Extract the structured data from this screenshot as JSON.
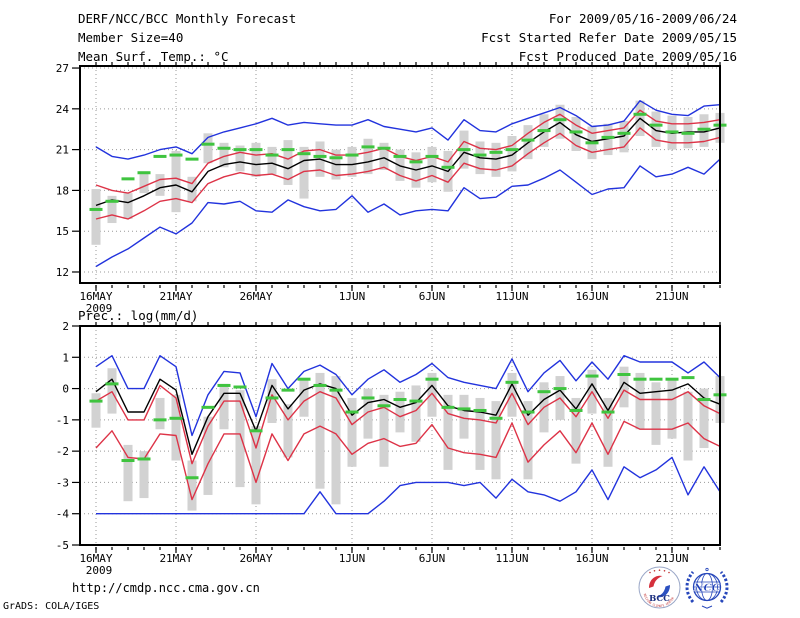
{
  "header": {
    "title": "DERF/NCC/BCC Monthly Forecast",
    "member_size": "Member Size=40",
    "for_range": "For 2009/05/16-2009/06/24",
    "refer_date": "Fcst Started Refer Date 2009/05/15",
    "produced_date": "Fcst Produced Date 2009/05/16"
  },
  "footer": {
    "url": "http://cmdp.ncc.cma.gov.cn",
    "credit": "GrADS: COLA/IGES",
    "logo_bcc": "BCC",
    "logo_ncc": "NCC"
  },
  "colors": {
    "minmax_line": "#2233dd",
    "sd_line": "#dd3347",
    "mean_line": "#000000",
    "obs_dash": "#3fc43f",
    "spread_bar": "#d2d2d2",
    "grid": "#999999"
  },
  "chart_data": [
    {
      "type": "line",
      "title": "Mean Surf. Temp.: °C",
      "ylim": [
        11.19,
        27.15
      ],
      "yticks": [
        12,
        15,
        18,
        21,
        24,
        27
      ],
      "x_range_days": [
        -1,
        39
      ],
      "x_ticks": [
        {
          "day": 0,
          "label": "16MAY",
          "sub": "2009"
        },
        {
          "day": 5,
          "label": "21MAY"
        },
        {
          "day": 10,
          "label": "26MAY"
        },
        {
          "day": 16,
          "label": "1JUN"
        },
        {
          "day": 21,
          "label": "6JUN"
        },
        {
          "day": 26,
          "label": "11JUN"
        },
        {
          "day": 31,
          "label": "16JUN"
        },
        {
          "day": 36,
          "label": "21JUN"
        }
      ],
      "series": [
        {
          "name": "ens-max",
          "color": "#2233dd",
          "values": [
            21.2,
            20.5,
            20.3,
            20.6,
            21.0,
            21.2,
            20.7,
            21.9,
            22.3,
            22.6,
            22.9,
            23.3,
            22.8,
            23.0,
            22.9,
            22.8,
            22.8,
            23.2,
            22.7,
            22.5,
            22.3,
            22.6,
            21.7,
            23.2,
            22.4,
            22.3,
            22.9,
            23.3,
            23.7,
            24.1,
            23.5,
            22.7,
            22.8,
            23.1,
            24.6,
            23.9,
            23.6,
            23.5,
            24.2,
            24.3
          ]
        },
        {
          "name": "plus-sd",
          "color": "#dd3347",
          "values": [
            18.4,
            18.0,
            17.8,
            18.3,
            18.8,
            18.9,
            18.5,
            20.0,
            20.5,
            20.8,
            20.6,
            20.7,
            20.3,
            20.9,
            21.0,
            20.6,
            20.6,
            20.8,
            21.1,
            20.5,
            20.2,
            20.5,
            20.1,
            21.6,
            21.1,
            21.0,
            21.3,
            22.2,
            23.0,
            23.6,
            22.8,
            22.2,
            22.4,
            22.6,
            23.9,
            23.1,
            22.9,
            22.9,
            23.0,
            23.2
          ]
        },
        {
          "name": "minus-sd",
          "color": "#dd3347",
          "values": [
            15.9,
            16.2,
            15.9,
            16.5,
            17.2,
            17.4,
            17.1,
            18.5,
            19.0,
            19.3,
            19.1,
            19.2,
            18.8,
            19.4,
            19.5,
            19.1,
            19.2,
            19.4,
            19.7,
            19.1,
            18.7,
            19.1,
            18.6,
            20.0,
            19.6,
            19.5,
            19.8,
            20.7,
            21.5,
            22.2,
            21.3,
            20.8,
            21.0,
            21.2,
            22.6,
            21.7,
            21.5,
            21.5,
            21.6,
            21.9
          ]
        },
        {
          "name": "ens-min",
          "color": "#2233dd",
          "values": [
            12.4,
            13.1,
            13.7,
            14.5,
            15.3,
            14.8,
            15.6,
            17.1,
            17.0,
            17.2,
            16.5,
            16.4,
            17.3,
            16.8,
            16.5,
            16.6,
            17.6,
            16.4,
            17.0,
            16.2,
            16.5,
            16.6,
            16.5,
            18.2,
            17.4,
            17.5,
            18.3,
            18.4,
            18.9,
            19.5,
            18.6,
            17.7,
            18.1,
            18.2,
            19.8,
            19.0,
            19.2,
            19.7,
            19.2,
            20.3
          ]
        },
        {
          "name": "ens-mean",
          "color": "#000000",
          "values": [
            16.9,
            17.3,
            17.1,
            17.6,
            18.2,
            18.4,
            17.9,
            19.4,
            19.9,
            20.1,
            19.9,
            20.0,
            19.6,
            20.2,
            20.3,
            19.9,
            19.9,
            20.1,
            20.4,
            19.8,
            19.5,
            19.8,
            19.4,
            20.8,
            20.4,
            20.3,
            20.6,
            21.5,
            22.3,
            23.0,
            22.1,
            21.6,
            21.8,
            22.0,
            23.3,
            22.4,
            22.2,
            22.3,
            22.3,
            22.6
          ]
        }
      ],
      "obs": {
        "name": "observation",
        "color": "#3fc43f",
        "values": [
          16.6,
          17.2,
          18.85,
          19.3,
          20.5,
          20.6,
          20.3,
          21.4,
          21.1,
          21.0,
          21.0,
          20.6,
          21.0,
          20.7,
          20.5,
          20.4,
          20.6,
          21.2,
          21.1,
          20.5,
          20.1,
          20.5,
          19.7,
          21.0,
          20.6,
          20.8,
          21.0,
          21.7,
          22.4,
          23.2,
          22.3,
          21.5,
          21.9,
          22.2,
          23.6,
          22.8,
          22.3,
          22.2,
          22.5,
          22.8
        ]
      },
      "bars": {
        "name": "ensemble-spread",
        "color": "#d2d2d2",
        "ranges": [
          [
            14.0,
            18.1
          ],
          [
            15.6,
            17.6
          ],
          [
            15.9,
            17.8
          ],
          [
            17.8,
            19.4
          ],
          [
            17.6,
            19.2
          ],
          [
            16.4,
            20.9
          ],
          [
            17.2,
            19.0
          ],
          [
            20.0,
            22.2
          ],
          [
            19.7,
            21.5
          ],
          [
            19.4,
            21.3
          ],
          [
            19.0,
            21.5
          ],
          [
            19.2,
            21.2
          ],
          [
            18.4,
            21.7
          ],
          [
            17.4,
            21.2
          ],
          [
            19.0,
            21.6
          ],
          [
            18.8,
            21.0
          ],
          [
            19.0,
            21.2
          ],
          [
            19.2,
            21.8
          ],
          [
            19.5,
            21.5
          ],
          [
            18.7,
            21.0
          ],
          [
            18.2,
            20.8
          ],
          [
            18.6,
            21.2
          ],
          [
            17.9,
            20.9
          ],
          [
            19.6,
            22.4
          ],
          [
            19.2,
            21.6
          ],
          [
            19.0,
            21.5
          ],
          [
            19.4,
            22.0
          ],
          [
            20.3,
            22.8
          ],
          [
            21.2,
            23.6
          ],
          [
            21.8,
            24.3
          ],
          [
            20.9,
            23.4
          ],
          [
            20.3,
            22.7
          ],
          [
            20.6,
            22.9
          ],
          [
            20.8,
            23.1
          ],
          [
            22.0,
            24.6
          ],
          [
            21.2,
            23.8
          ],
          [
            21.0,
            23.5
          ],
          [
            21.1,
            23.4
          ],
          [
            21.2,
            23.6
          ],
          [
            21.5,
            23.7
          ]
        ]
      }
    },
    {
      "type": "line",
      "title": "Prec.: log(mm/d)",
      "ylim": [
        -5,
        2
      ],
      "yticks": [
        -5,
        -4,
        -3,
        -2,
        -1,
        0,
        1,
        2
      ],
      "x_range_days": [
        -1,
        39
      ],
      "x_ticks": [
        {
          "day": 0,
          "label": "16MAY",
          "sub": "2009"
        },
        {
          "day": 5,
          "label": "21MAY"
        },
        {
          "day": 10,
          "label": "26MAY"
        },
        {
          "day": 16,
          "label": "1JUN"
        },
        {
          "day": 21,
          "label": "6JUN"
        },
        {
          "day": 26,
          "label": "11JUN"
        },
        {
          "day": 31,
          "label": "16JUN"
        },
        {
          "day": 36,
          "label": "21JUN"
        }
      ],
      "series": [
        {
          "name": "ens-max",
          "color": "#2233dd",
          "values": [
            0.7,
            1.05,
            0.0,
            0.0,
            1.05,
            0.7,
            -1.5,
            -0.2,
            0.55,
            0.5,
            -0.9,
            0.8,
            0.0,
            0.55,
            0.75,
            0.45,
            -0.2,
            0.3,
            0.6,
            0.2,
            0.45,
            0.8,
            0.35,
            0.2,
            0.1,
            0.0,
            0.95,
            -0.1,
            0.5,
            0.9,
            0.25,
            0.85,
            0.3,
            1.05,
            0.85,
            0.85,
            0.85,
            0.5,
            0.85,
            0.35
          ]
        },
        {
          "name": "plus-sd",
          "color": "#dd3347",
          "values": [
            -0.4,
            -0.1,
            -1.0,
            -1.0,
            0.1,
            -0.3,
            -2.4,
            -1.2,
            -0.4,
            -0.4,
            -1.9,
            -0.2,
            -1.0,
            -0.4,
            -0.1,
            -0.3,
            -1.15,
            -0.75,
            -0.6,
            -0.9,
            -0.7,
            -0.15,
            -0.8,
            -0.95,
            -1.0,
            -1.1,
            -0.15,
            -1.15,
            -0.6,
            -0.3,
            -0.9,
            -0.1,
            -0.95,
            -0.05,
            -0.35,
            -0.35,
            -0.35,
            -0.1,
            -0.55,
            -0.8
          ]
        },
        {
          "name": "minus-sd",
          "color": "#dd3347",
          "values": [
            -1.9,
            -1.35,
            -2.2,
            -2.25,
            -1.45,
            -1.5,
            -3.55,
            -2.4,
            -1.45,
            -1.45,
            -3.0,
            -1.45,
            -2.3,
            -1.45,
            -1.2,
            -1.45,
            -2.1,
            -1.75,
            -1.6,
            -1.85,
            -1.75,
            -1.15,
            -1.9,
            -2.05,
            -2.1,
            -2.2,
            -1.1,
            -2.35,
            -1.8,
            -1.35,
            -2.05,
            -1.1,
            -2.1,
            -1.05,
            -1.3,
            -1.3,
            -1.3,
            -1.1,
            -1.6,
            -1.85
          ]
        },
        {
          "name": "ens-min",
          "color": "#2233dd",
          "values": [
            -4,
            -4,
            -4,
            -4,
            -4,
            -4,
            -4,
            -4,
            -4,
            -4,
            -4,
            -4,
            -4,
            -4,
            -3.3,
            -4,
            -4,
            -4,
            -3.6,
            -3.1,
            -3.0,
            -3.0,
            -3.0,
            -3.1,
            -3.0,
            -3.5,
            -2.9,
            -3.3,
            -3.4,
            -3.6,
            -3.3,
            -2.6,
            -3.55,
            -2.5,
            -2.85,
            -2.6,
            -2.2,
            -3.4,
            -2.5,
            -3.3
          ]
        },
        {
          "name": "ens-mean",
          "color": "#000000",
          "values": [
            -0.1,
            0.3,
            -0.75,
            -0.75,
            0.3,
            -0.05,
            -2.1,
            -0.9,
            -0.15,
            -0.15,
            -1.35,
            0.1,
            -0.65,
            -0.05,
            0.15,
            0.0,
            -0.85,
            -0.45,
            -0.35,
            -0.6,
            -0.45,
            0.1,
            -0.55,
            -0.7,
            -0.75,
            -0.85,
            0.15,
            -0.85,
            -0.35,
            -0.05,
            -0.65,
            0.15,
            -0.7,
            0.2,
            -0.15,
            -0.1,
            -0.05,
            0.15,
            -0.3,
            -0.5
          ]
        }
      ],
      "obs": {
        "name": "observation",
        "color": "#3fc43f",
        "values": [
          -0.4,
          0.15,
          -2.3,
          -2.25,
          -1.0,
          -0.95,
          -2.85,
          -0.6,
          0.1,
          0.05,
          -1.35,
          -0.3,
          -0.05,
          0.3,
          0.1,
          -0.05,
          -0.75,
          -0.3,
          -0.55,
          -0.35,
          -0.4,
          0.3,
          -0.6,
          -0.65,
          -0.7,
          -0.95,
          0.2,
          -0.75,
          -0.1,
          0.0,
          -0.7,
          0.4,
          -0.75,
          0.45,
          0.3,
          0.3,
          0.3,
          0.35,
          -0.35,
          -0.2
        ]
      },
      "bars": {
        "name": "ensemble-spread",
        "color": "#d2d2d2",
        "ranges": [
          [
            -1.25,
            -0.15
          ],
          [
            -0.8,
            0.65
          ],
          [
            -3.6,
            -1.8
          ],
          [
            -3.5,
            -2.0
          ],
          [
            -1.3,
            -0.3
          ],
          [
            -2.3,
            -0.2
          ],
          [
            -3.9,
            -2.3
          ],
          [
            -3.4,
            -0.9
          ],
          [
            -1.3,
            0.15
          ],
          [
            -3.15,
            -0.05
          ],
          [
            -3.7,
            -1.2
          ],
          [
            -1.1,
            0.3
          ],
          [
            -2.2,
            -0.5
          ],
          [
            -0.9,
            0.3
          ],
          [
            -3.2,
            0.5
          ],
          [
            -3.7,
            0.4
          ],
          [
            -2.5,
            -0.3
          ],
          [
            -1.6,
            0.0
          ],
          [
            -2.5,
            -0.2
          ],
          [
            -1.4,
            -0.1
          ],
          [
            -1.7,
            0.1
          ],
          [
            -0.9,
            0.5
          ],
          [
            -2.6,
            -0.2
          ],
          [
            -1.6,
            -0.2
          ],
          [
            -2.6,
            -0.3
          ],
          [
            -2.9,
            -0.4
          ],
          [
            -0.9,
            0.5
          ],
          [
            -2.9,
            -0.4
          ],
          [
            -1.4,
            0.2
          ],
          [
            -1.0,
            0.4
          ],
          [
            -2.4,
            -0.3
          ],
          [
            -0.8,
            0.6
          ],
          [
            -2.5,
            -0.3
          ],
          [
            -0.6,
            0.7
          ],
          [
            -1.3,
            0.5
          ],
          [
            -1.8,
            0.2
          ],
          [
            -1.6,
            0.3
          ],
          [
            -2.3,
            -0.1
          ],
          [
            -1.9,
            0.0
          ],
          [
            -1.1,
            0.4
          ]
        ]
      }
    }
  ]
}
